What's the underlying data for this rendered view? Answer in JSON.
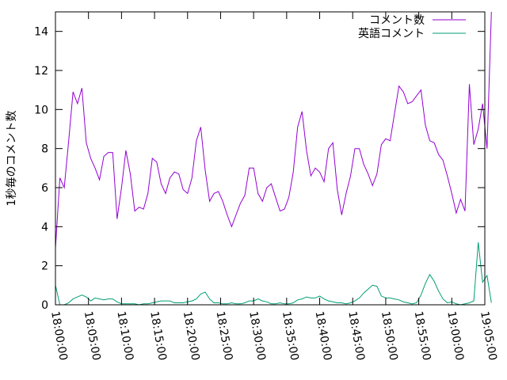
{
  "chart_data": {
    "type": "line",
    "title": "",
    "xlabel": "",
    "ylabel": "1秒毎のコメント数",
    "x_ticks": [
      "18:00:00",
      "18:05:00",
      "18:10:00",
      "18:15:00",
      "18:20:00",
      "18:25:00",
      "18:30:00",
      "18:35:00",
      "18:40:00",
      "18:45:00",
      "18:50:00",
      "18:55:00",
      "19:00:00",
      "19:05:00"
    ],
    "y_ticks": [
      "0",
      "2",
      "4",
      "6",
      "8",
      "10",
      "12",
      "14"
    ],
    "xlim": [
      "18:00:00",
      "19:05:00"
    ],
    "ylim": [
      0,
      15
    ],
    "grid": false,
    "legend_position": "top-right",
    "colors": {
      "comments": "#9400d3",
      "english": "#009e73"
    },
    "series": [
      {
        "name": "コメント数",
        "color": "#9400d3",
        "points": [
          [
            "18:00:00",
            2.9
          ],
          [
            "18:00:40",
            6.5
          ],
          [
            "18:01:20",
            6.0
          ],
          [
            "18:02:00",
            8.4
          ],
          [
            "18:02:40",
            10.9
          ],
          [
            "18:03:20",
            10.3
          ],
          [
            "18:04:00",
            11.1
          ],
          [
            "18:04:40",
            8.3
          ],
          [
            "18:05:20",
            7.5
          ],
          [
            "18:06:00",
            7.0
          ],
          [
            "18:06:40",
            6.4
          ],
          [
            "18:07:20",
            7.6
          ],
          [
            "18:08:00",
            7.8
          ],
          [
            "18:08:40",
            7.8
          ],
          [
            "18:09:20",
            4.4
          ],
          [
            "18:10:00",
            6.0
          ],
          [
            "18:10:40",
            7.9
          ],
          [
            "18:11:20",
            6.7
          ],
          [
            "18:12:00",
            4.8
          ],
          [
            "18:12:40",
            5.0
          ],
          [
            "18:13:20",
            4.9
          ],
          [
            "18:14:00",
            5.7
          ],
          [
            "18:14:40",
            7.5
          ],
          [
            "18:15:20",
            7.3
          ],
          [
            "18:16:00",
            6.2
          ],
          [
            "18:16:40",
            5.7
          ],
          [
            "18:17:20",
            6.5
          ],
          [
            "18:18:00",
            6.8
          ],
          [
            "18:18:40",
            6.7
          ],
          [
            "18:19:20",
            5.9
          ],
          [
            "18:20:00",
            5.7
          ],
          [
            "18:20:40",
            6.5
          ],
          [
            "18:21:20",
            8.4
          ],
          [
            "18:22:00",
            9.1
          ],
          [
            "18:22:40",
            6.9
          ],
          [
            "18:23:20",
            5.3
          ],
          [
            "18:24:00",
            5.7
          ],
          [
            "18:24:40",
            5.8
          ],
          [
            "18:25:20",
            5.3
          ],
          [
            "18:26:00",
            4.6
          ],
          [
            "18:26:40",
            4.0
          ],
          [
            "18:27:20",
            4.6
          ],
          [
            "18:28:00",
            5.2
          ],
          [
            "18:28:40",
            5.6
          ],
          [
            "18:29:20",
            7.0
          ],
          [
            "18:30:00",
            7.0
          ],
          [
            "18:30:40",
            5.7
          ],
          [
            "18:31:20",
            5.3
          ],
          [
            "18:32:00",
            6.0
          ],
          [
            "18:32:40",
            6.2
          ],
          [
            "18:33:20",
            5.5
          ],
          [
            "18:34:00",
            4.8
          ],
          [
            "18:34:40",
            4.9
          ],
          [
            "18:35:20",
            5.5
          ],
          [
            "18:36:00",
            6.8
          ],
          [
            "18:36:40",
            9.1
          ],
          [
            "18:37:20",
            9.9
          ],
          [
            "18:38:00",
            7.9
          ],
          [
            "18:38:40",
            6.6
          ],
          [
            "18:39:20",
            7.0
          ],
          [
            "18:40:00",
            6.8
          ],
          [
            "18:40:40",
            6.3
          ],
          [
            "18:41:20",
            8.0
          ],
          [
            "18:42:00",
            8.3
          ],
          [
            "18:42:40",
            5.9
          ],
          [
            "18:43:20",
            4.6
          ],
          [
            "18:44:00",
            5.7
          ],
          [
            "18:44:40",
            6.6
          ],
          [
            "18:45:20",
            8.0
          ],
          [
            "18:46:00",
            8.0
          ],
          [
            "18:46:40",
            7.2
          ],
          [
            "18:47:20",
            6.7
          ],
          [
            "18:48:00",
            6.1
          ],
          [
            "18:48:40",
            6.7
          ],
          [
            "18:49:20",
            8.2
          ],
          [
            "18:50:00",
            8.5
          ],
          [
            "18:50:40",
            8.4
          ],
          [
            "18:51:20",
            9.8
          ],
          [
            "18:52:00",
            11.2
          ],
          [
            "18:52:40",
            10.9
          ],
          [
            "18:53:20",
            10.3
          ],
          [
            "18:54:00",
            10.4
          ],
          [
            "18:54:40",
            10.7
          ],
          [
            "18:55:20",
            11.0
          ],
          [
            "18:56:00",
            9.2
          ],
          [
            "18:56:40",
            8.4
          ],
          [
            "18:57:20",
            8.3
          ],
          [
            "18:58:00",
            7.7
          ],
          [
            "18:58:40",
            7.4
          ],
          [
            "18:59:20",
            6.6
          ],
          [
            "19:00:00",
            5.7
          ],
          [
            "19:00:40",
            4.7
          ],
          [
            "19:01:20",
            5.4
          ],
          [
            "19:02:00",
            4.8
          ],
          [
            "19:02:40",
            11.3
          ],
          [
            "19:03:20",
            8.2
          ],
          [
            "19:04:00",
            9.0
          ],
          [
            "19:04:40",
            10.3
          ],
          [
            "19:05:20",
            8.0
          ],
          [
            "19:06:00",
            15.0
          ]
        ]
      },
      {
        "name": "英語コメント",
        "color": "#009e73",
        "points": [
          [
            "18:00:00",
            1.0
          ],
          [
            "18:00:40",
            0.0
          ],
          [
            "18:01:20",
            0.0
          ],
          [
            "18:02:00",
            0.1
          ],
          [
            "18:02:40",
            0.3
          ],
          [
            "18:03:20",
            0.4
          ],
          [
            "18:04:00",
            0.5
          ],
          [
            "18:04:40",
            0.4
          ],
          [
            "18:05:20",
            0.2
          ],
          [
            "18:06:00",
            0.35
          ],
          [
            "18:06:40",
            0.3
          ],
          [
            "18:07:20",
            0.25
          ],
          [
            "18:08:00",
            0.3
          ],
          [
            "18:08:40",
            0.3
          ],
          [
            "18:09:20",
            0.15
          ],
          [
            "18:10:00",
            0.05
          ],
          [
            "18:10:40",
            0.05
          ],
          [
            "18:11:20",
            0.05
          ],
          [
            "18:12:00",
            0.05
          ],
          [
            "18:12:40",
            0.0
          ],
          [
            "18:13:20",
            0.05
          ],
          [
            "18:14:00",
            0.05
          ],
          [
            "18:14:40",
            0.1
          ],
          [
            "18:15:20",
            0.15
          ],
          [
            "18:16:00",
            0.2
          ],
          [
            "18:16:40",
            0.2
          ],
          [
            "18:17:20",
            0.2
          ],
          [
            "18:18:00",
            0.1
          ],
          [
            "18:18:40",
            0.1
          ],
          [
            "18:19:20",
            0.1
          ],
          [
            "18:20:00",
            0.15
          ],
          [
            "18:20:40",
            0.2
          ],
          [
            "18:21:20",
            0.3
          ],
          [
            "18:22:00",
            0.55
          ],
          [
            "18:22:40",
            0.65
          ],
          [
            "18:23:20",
            0.3
          ],
          [
            "18:24:00",
            0.1
          ],
          [
            "18:24:40",
            0.1
          ],
          [
            "18:25:20",
            0.05
          ],
          [
            "18:26:00",
            0.05
          ],
          [
            "18:26:40",
            0.1
          ],
          [
            "18:27:20",
            0.05
          ],
          [
            "18:28:00",
            0.05
          ],
          [
            "18:28:40",
            0.1
          ],
          [
            "18:29:20",
            0.2
          ],
          [
            "18:30:00",
            0.2
          ],
          [
            "18:30:40",
            0.3
          ],
          [
            "18:31:20",
            0.2
          ],
          [
            "18:32:00",
            0.15
          ],
          [
            "18:32:40",
            0.05
          ],
          [
            "18:33:20",
            0.05
          ],
          [
            "18:34:00",
            0.1
          ],
          [
            "18:34:40",
            0.05
          ],
          [
            "18:35:20",
            0.05
          ],
          [
            "18:36:00",
            0.1
          ],
          [
            "18:36:40",
            0.25
          ],
          [
            "18:37:20",
            0.3
          ],
          [
            "18:38:00",
            0.4
          ],
          [
            "18:38:40",
            0.35
          ],
          [
            "18:39:20",
            0.35
          ],
          [
            "18:40:00",
            0.45
          ],
          [
            "18:40:40",
            0.3
          ],
          [
            "18:41:20",
            0.2
          ],
          [
            "18:42:00",
            0.15
          ],
          [
            "18:42:40",
            0.1
          ],
          [
            "18:43:20",
            0.1
          ],
          [
            "18:44:00",
            0.05
          ],
          [
            "18:44:40",
            0.1
          ],
          [
            "18:45:20",
            0.2
          ],
          [
            "18:46:00",
            0.35
          ],
          [
            "18:46:40",
            0.6
          ],
          [
            "18:47:20",
            0.8
          ],
          [
            "18:48:00",
            1.0
          ],
          [
            "18:48:40",
            0.95
          ],
          [
            "18:49:20",
            0.45
          ],
          [
            "18:50:00",
            0.35
          ],
          [
            "18:50:40",
            0.35
          ],
          [
            "18:51:20",
            0.3
          ],
          [
            "18:52:00",
            0.25
          ],
          [
            "18:52:40",
            0.15
          ],
          [
            "18:53:20",
            0.1
          ],
          [
            "18:54:00",
            0.05
          ],
          [
            "18:54:40",
            0.1
          ],
          [
            "18:55:20",
            0.5
          ],
          [
            "18:56:00",
            1.1
          ],
          [
            "18:56:40",
            1.55
          ],
          [
            "18:57:20",
            1.2
          ],
          [
            "18:58:00",
            0.7
          ],
          [
            "18:58:40",
            0.3
          ],
          [
            "18:59:20",
            0.1
          ],
          [
            "19:00:00",
            0.15
          ],
          [
            "19:00:40",
            0.05
          ],
          [
            "19:01:20",
            0.0
          ],
          [
            "19:02:00",
            0.05
          ],
          [
            "19:02:40",
            0.1
          ],
          [
            "19:03:20",
            0.2
          ],
          [
            "19:04:00",
            3.2
          ],
          [
            "19:04:40",
            1.15
          ],
          [
            "19:05:20",
            1.5
          ],
          [
            "19:06:00",
            0.1
          ]
        ]
      }
    ]
  }
}
